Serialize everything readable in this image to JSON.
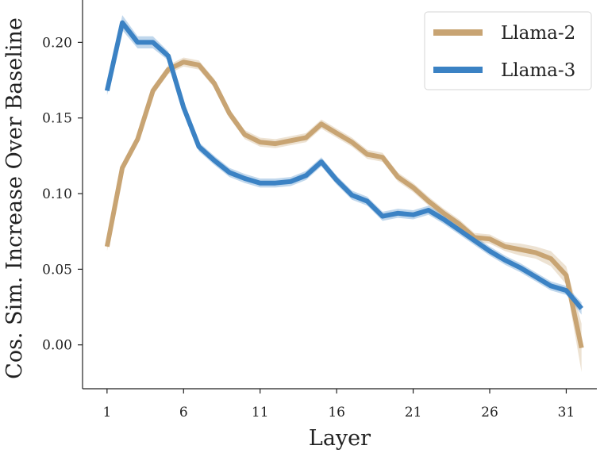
{
  "chart_data": {
    "type": "line",
    "xlabel": "Layer",
    "ylabel": "Cos. Sim. Increase Over Baseline",
    "xlim": [
      -0.6,
      33
    ],
    "ylim": [
      -0.029,
      0.228
    ],
    "x_ticks": [
      1,
      6,
      11,
      16,
      21,
      26,
      31
    ],
    "y_ticks": [
      0.0,
      0.05,
      0.1,
      0.15,
      0.2
    ],
    "y_tick_labels": [
      "0.00",
      "0.05",
      "0.10",
      "0.15",
      "0.20"
    ],
    "grid": false,
    "legend_position": "top-right",
    "x": [
      1,
      2,
      3,
      4,
      5,
      6,
      7,
      8,
      9,
      10,
      11,
      12,
      13,
      14,
      15,
      16,
      17,
      18,
      19,
      20,
      21,
      22,
      23,
      24,
      25,
      26,
      27,
      28,
      29,
      30,
      31,
      32
    ],
    "series": [
      {
        "name": "Llama-2",
        "color": "#c8a473",
        "values": [
          0.065,
          0.117,
          0.136,
          0.168,
          0.182,
          0.187,
          0.185,
          0.173,
          0.153,
          0.139,
          0.134,
          0.133,
          0.135,
          0.137,
          0.146,
          0.14,
          0.134,
          0.126,
          0.124,
          0.111,
          0.104,
          0.095,
          0.087,
          0.08,
          0.071,
          0.07,
          0.065,
          0.063,
          0.061,
          0.057,
          0.046,
          -0.002
        ],
        "band": [
          0.003,
          0.003,
          0.003,
          0.003,
          0.003,
          0.003,
          0.003,
          0.003,
          0.003,
          0.003,
          0.003,
          0.003,
          0.003,
          0.003,
          0.003,
          0.003,
          0.003,
          0.003,
          0.003,
          0.003,
          0.003,
          0.003,
          0.003,
          0.003,
          0.003,
          0.003,
          0.003,
          0.004,
          0.004,
          0.005,
          0.006,
          0.016
        ]
      },
      {
        "name": "Llama-3",
        "color": "#3b82c4",
        "values": [
          0.168,
          0.213,
          0.2,
          0.2,
          0.191,
          0.157,
          0.131,
          0.122,
          0.114,
          0.11,
          0.107,
          0.107,
          0.108,
          0.112,
          0.121,
          0.109,
          0.099,
          0.095,
          0.085,
          0.087,
          0.086,
          0.089,
          0.083,
          0.076,
          0.069,
          0.062,
          0.056,
          0.051,
          0.045,
          0.039,
          0.036,
          0.024
        ],
        "band": [
          0.003,
          0.005,
          0.004,
          0.004,
          0.003,
          0.003,
          0.003,
          0.003,
          0.003,
          0.003,
          0.003,
          0.003,
          0.003,
          0.003,
          0.003,
          0.003,
          0.003,
          0.003,
          0.003,
          0.003,
          0.003,
          0.003,
          0.003,
          0.003,
          0.003,
          0.003,
          0.003,
          0.003,
          0.003,
          0.003,
          0.003,
          0.004
        ]
      }
    ]
  }
}
